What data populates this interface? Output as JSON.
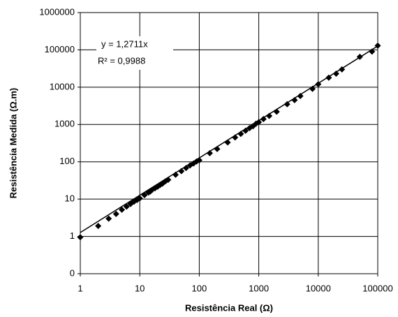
{
  "chart_data": {
    "type": "scatter",
    "x_label": "Resistência Real (Ω)",
    "y_label": "Resistência Medida (Ω.m)",
    "log_x": true,
    "log_y": true,
    "grid": true,
    "xlim": [
      1,
      100000
    ],
    "xticks": [
      1,
      10,
      100,
      1000,
      10000,
      100000
    ],
    "ylim": [
      0.1,
      1000000
    ],
    "yticks": [
      {
        "value": 0.1,
        "label": "0"
      },
      1,
      10,
      100,
      1000,
      10000,
      100000,
      1000000
    ],
    "series": [
      {
        "color": "#000000",
        "x": [
          1,
          2,
          3,
          4,
          5,
          6,
          7,
          8,
          9,
          10,
          12,
          14,
          15,
          16,
          18,
          20,
          22,
          24,
          25,
          27,
          30,
          40,
          50,
          60,
          70,
          80,
          90,
          100,
          150,
          200,
          300,
          400,
          500,
          600,
          700,
          800,
          900,
          1000,
          1200,
          1500,
          2000,
          3000,
          4000,
          5000,
          8000,
          10000,
          15000,
          20000,
          25000,
          50000,
          80000,
          100000
        ],
        "values": [
          0.95,
          1.9,
          3,
          4,
          5.2,
          6.3,
          7.4,
          8.5,
          9.5,
          10.5,
          12.8,
          15,
          16,
          17.5,
          19.5,
          21.5,
          24,
          26,
          27.5,
          30,
          33,
          45,
          56,
          68,
          80,
          90,
          102,
          110,
          170,
          220,
          330,
          450,
          560,
          680,
          800,
          900,
          1050,
          1150,
          1400,
          1700,
          2200,
          3500,
          4500,
          5800,
          9000,
          12000,
          18000,
          23000,
          30000,
          65000,
          90000,
          130000
        ]
      }
    ],
    "trendline": {
      "slope": 1.2711,
      "color": "#000000",
      "equation": "y = 1,2711x",
      "r_squared": "R² = 0,9988"
    }
  }
}
